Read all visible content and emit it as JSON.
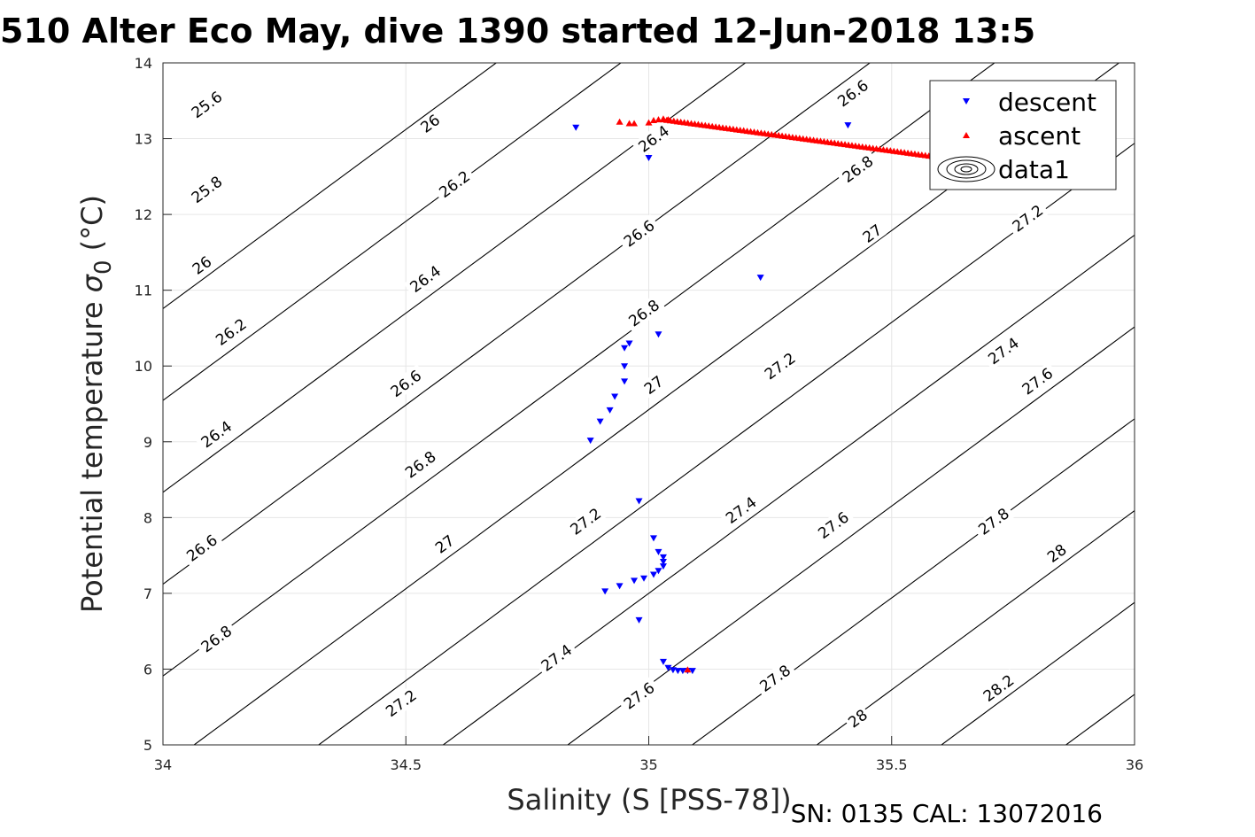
{
  "chart_data": {
    "type": "scatter",
    "title": "510 Alter Eco May, dive 1390 started 12-Jun-2018 13:5",
    "xlabel": "Salinity (S [PSS-78])",
    "ylabel": "Potential temperature",
    "ylabel_symbol": "σ",
    "ylabel_subscript": "0",
    "ylabel_unit": "(°C)",
    "footer": "SN: 0135  CAL: 13072016",
    "xlim": [
      34,
      36
    ],
    "ylim": [
      5,
      14
    ],
    "xticks": [
      34,
      34.5,
      35,
      35.5,
      36
    ],
    "xtick_labels": [
      "34",
      "34.5",
      "35",
      "35.5",
      "36"
    ],
    "yticks": [
      5,
      6,
      7,
      8,
      9,
      10,
      11,
      12,
      13,
      14
    ],
    "ytick_labels": [
      "5",
      "6",
      "7",
      "8",
      "9",
      "10",
      "11",
      "12",
      "13",
      "14"
    ],
    "grid": true,
    "legend_position": "top-right",
    "contours": {
      "levels": [
        25.6,
        25.8,
        26,
        26.2,
        26.4,
        26.6,
        26.8,
        27,
        27.2,
        27.4,
        27.6,
        27.8,
        28,
        28.2
      ],
      "labels": [
        {
          "text": "25.6",
          "s": 34.09,
          "t": 13.45
        },
        {
          "text": "25.8",
          "s": 34.09,
          "t": 12.33
        },
        {
          "text": "26",
          "s": 34.08,
          "t": 11.33
        },
        {
          "text": "26.2",
          "s": 34.14,
          "t": 10.45
        },
        {
          "text": "26.4",
          "s": 34.11,
          "t": 9.1
        },
        {
          "text": "26.6",
          "s": 34.08,
          "t": 7.6
        },
        {
          "text": "26.8",
          "s": 34.11,
          "t": 6.4
        },
        {
          "text": "26",
          "s": 34.55,
          "t": 13.2
        },
        {
          "text": "26.2",
          "s": 34.6,
          "t": 12.4
        },
        {
          "text": "26.4",
          "s": 34.54,
          "t": 11.15
        },
        {
          "text": "26.6",
          "s": 34.5,
          "t": 9.77
        },
        {
          "text": "26.8",
          "s": 34.53,
          "t": 8.7
        },
        {
          "text": "27",
          "s": 34.58,
          "t": 7.65
        },
        {
          "text": "27.2",
          "s": 34.49,
          "t": 5.55
        },
        {
          "text": "26.4",
          "s": 35.01,
          "t": 13.0
        },
        {
          "text": "26.6",
          "s": 34.98,
          "t": 11.75
        },
        {
          "text": "26.8",
          "s": 34.99,
          "t": 10.7
        },
        {
          "text": "27",
          "s": 35.01,
          "t": 9.75
        },
        {
          "text": "27.2",
          "s": 34.87,
          "t": 7.95
        },
        {
          "text": "27.4",
          "s": 34.81,
          "t": 6.15
        },
        {
          "text": "27.6",
          "s": 34.98,
          "t": 5.65
        },
        {
          "text": "26.6",
          "s": 35.42,
          "t": 13.6
        },
        {
          "text": "26.8",
          "s": 35.43,
          "t": 12.6
        },
        {
          "text": "27",
          "s": 35.46,
          "t": 11.75
        },
        {
          "text": "27.2",
          "s": 35.27,
          "t": 10.0
        },
        {
          "text": "27.4",
          "s": 35.19,
          "t": 8.1
        },
        {
          "text": "27.6",
          "s": 35.38,
          "t": 7.9
        },
        {
          "text": "27.8",
          "s": 35.26,
          "t": 5.88
        },
        {
          "text": "28",
          "s": 35.43,
          "t": 5.35
        },
        {
          "text": "27.2",
          "s": 35.78,
          "t": 11.95
        },
        {
          "text": "27.4",
          "s": 35.73,
          "t": 10.2
        },
        {
          "text": "27.6",
          "s": 35.8,
          "t": 9.8
        },
        {
          "text": "27.8",
          "s": 35.71,
          "t": 7.95
        },
        {
          "text": "28",
          "s": 35.84,
          "t": 7.53
        },
        {
          "text": "28.2",
          "s": 35.72,
          "t": 5.75
        }
      ]
    },
    "series": [
      {
        "name": "descent",
        "color": "#0000ff",
        "marker": "triangle-down",
        "points": [
          [
            34.85,
            13.15
          ],
          [
            35.0,
            12.75
          ],
          [
            35.41,
            13.18
          ],
          [
            35.23,
            11.17
          ],
          [
            35.02,
            10.42
          ],
          [
            34.96,
            10.3
          ],
          [
            34.95,
            10.24
          ],
          [
            34.95,
            10.0
          ],
          [
            34.95,
            9.8
          ],
          [
            34.93,
            9.6
          ],
          [
            34.92,
            9.42
          ],
          [
            34.9,
            9.27
          ],
          [
            34.88,
            9.02
          ],
          [
            34.98,
            8.22
          ],
          [
            35.01,
            7.73
          ],
          [
            35.02,
            7.55
          ],
          [
            35.03,
            7.48
          ],
          [
            35.03,
            7.42
          ],
          [
            35.03,
            7.36
          ],
          [
            35.02,
            7.3
          ],
          [
            35.01,
            7.25
          ],
          [
            34.99,
            7.2
          ],
          [
            34.97,
            7.17
          ],
          [
            34.94,
            7.1
          ],
          [
            34.91,
            7.03
          ],
          [
            34.98,
            6.65
          ],
          [
            35.03,
            6.1
          ],
          [
            35.04,
            6.02
          ],
          [
            35.05,
            5.99
          ],
          [
            35.06,
            5.98
          ],
          [
            35.07,
            5.98
          ],
          [
            35.08,
            5.98
          ],
          [
            35.09,
            5.98
          ]
        ]
      },
      {
        "name": "ascent",
        "color": "#ff0000",
        "marker": "triangle-up",
        "points": [
          [
            34.94,
            13.22
          ],
          [
            34.96,
            13.2
          ],
          [
            34.97,
            13.2
          ],
          [
            35.0,
            13.21
          ],
          [
            35.01,
            13.24
          ],
          [
            35.02,
            13.25
          ],
          [
            35.03,
            13.26
          ],
          [
            35.04,
            13.25
          ],
          [
            35.08,
            5.99
          ]
        ],
        "line": {
          "from": [
            35.03,
            13.25
          ],
          "to": [
            35.67,
            12.69
          ],
          "count": 90
        }
      },
      {
        "name": "data1",
        "color": "#000000",
        "marker": "contour-glyph",
        "points": []
      }
    ]
  }
}
